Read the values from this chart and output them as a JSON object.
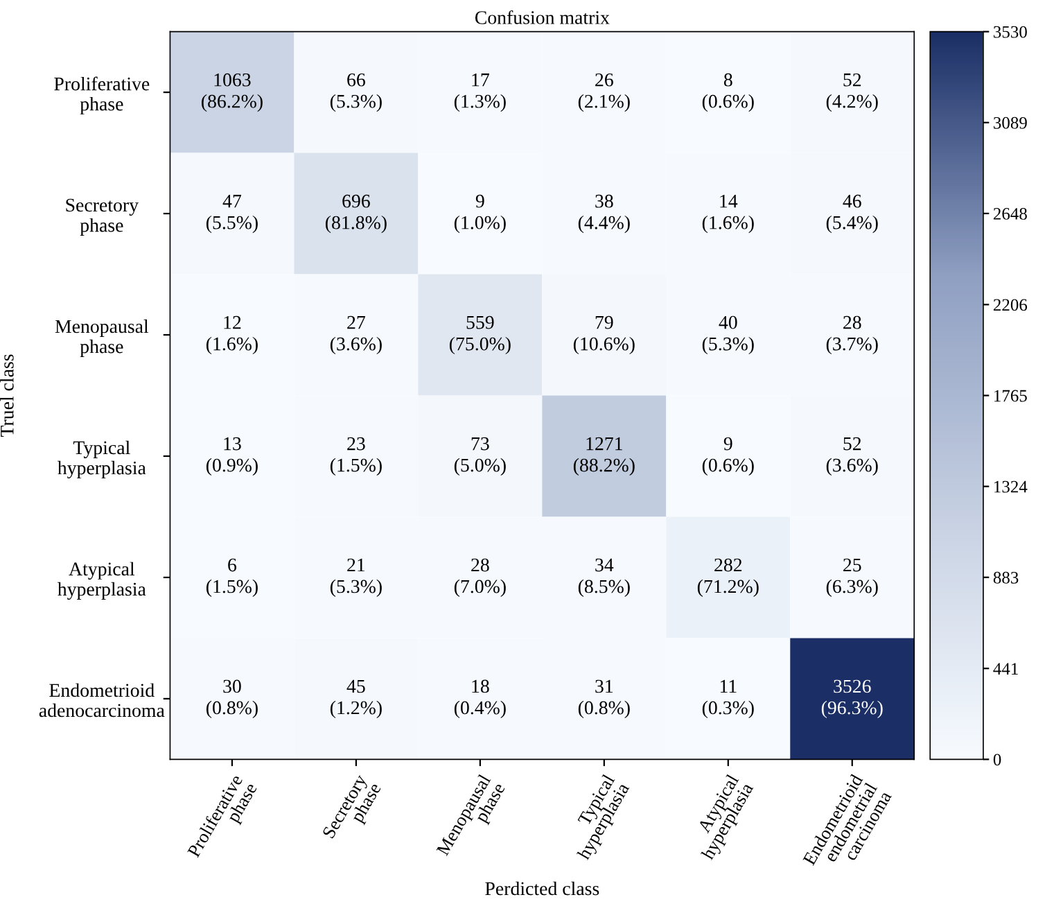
{
  "chart_data": {
    "type": "heatmap",
    "title": "Confusion matrix",
    "xlabel": "Perdicted class",
    "ylabel": "Truel class",
    "categories": [
      "Proliferative\nphase",
      "Secretory\nphase",
      "Menopausal\nphase",
      "Typical\nhyperplasia",
      "Atypical\nhyperplasia",
      "Endometrioid\nendometrial\ncarcinoma"
    ],
    "y_categories": [
      "Proliferative\nphase",
      "Secretory\nphase",
      "Menopausal\nphase",
      "Typical\nhyperplasia",
      "Atypical\nhyperplasia",
      "Endometrioid\nadenocarcinoma"
    ],
    "cells": [
      [
        1063,
        66,
        17,
        26,
        8,
        52
      ],
      [
        47,
        696,
        9,
        38,
        14,
        46
      ],
      [
        12,
        27,
        559,
        79,
        40,
        28
      ],
      [
        13,
        23,
        73,
        1271,
        9,
        52
      ],
      [
        6,
        21,
        28,
        34,
        282,
        25
      ],
      [
        30,
        45,
        18,
        31,
        11,
        3526
      ]
    ],
    "cell_labels": [
      [
        "1063\n(86.2%)",
        "66\n(5.3%)",
        "17\n(1.3%)",
        "26\n(2.1%)",
        "8\n(0.6%)",
        "52\n(4.2%)"
      ],
      [
        "47\n(5.5%)",
        "696\n(81.8%)",
        "9\n(1.0%)",
        "38\n(4.4%)",
        "14\n(1.6%)",
        "46\n(5.4%)"
      ],
      [
        "12\n(1.6%)",
        "27\n(3.6%)",
        "559\n(75.0%)",
        "79\n(10.6%)",
        "40\n(5.3%)",
        "28\n(3.7%)"
      ],
      [
        "13\n(0.9%)",
        "23\n(1.5%)",
        "73\n(5.0%)",
        "1271\n(88.2%)",
        "9\n(0.6%)",
        "52\n(3.6%)"
      ],
      [
        "6\n(1.5%)",
        "21\n(5.3%)",
        "28\n(7.0%)",
        "34\n(8.5%)",
        "282\n(71.2%)",
        "25\n(6.3%)"
      ],
      [
        "30\n(0.8%)",
        "45\n(1.2%)",
        "18\n(0.4%)",
        "31\n(0.8%)",
        "11\n(0.3%)",
        "3526\n(96.3%)"
      ]
    ],
    "clim": [
      0,
      3530
    ],
    "cticks": [
      0,
      441,
      883,
      1324,
      1765,
      2206,
      2648,
      3089,
      3530
    ]
  }
}
